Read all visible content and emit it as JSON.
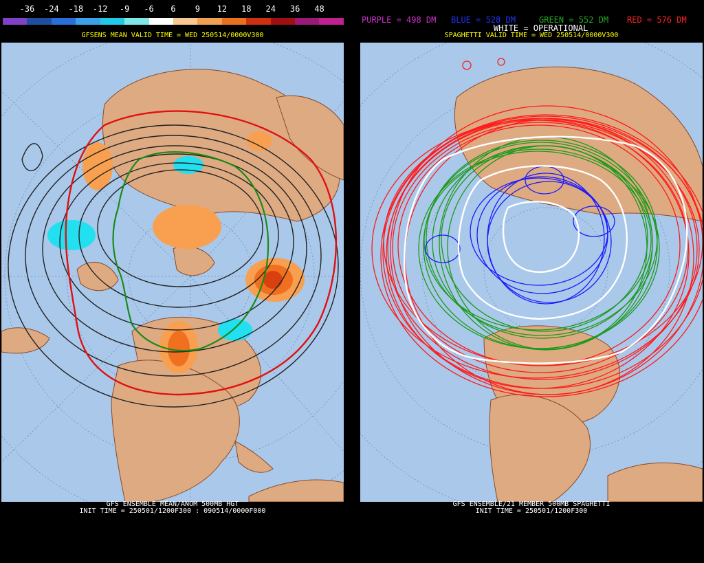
{
  "left_panel": {
    "scale": {
      "labels": [
        "-36",
        "-24",
        "-18",
        "-12",
        "-9",
        "-6",
        "6",
        "9",
        "12",
        "18",
        "24",
        "36",
        "48"
      ],
      "colors": [
        "#8040c8",
        "#1e4ea0",
        "#2a6fd8",
        "#3aa0e8",
        "#22c8e8",
        "#7ee8e8",
        "#ffffff",
        "#f8c890",
        "#f0a050",
        "#e87020",
        "#d03010",
        "#a01010",
        "#9a1a78",
        "#c02090"
      ]
    },
    "valid_title": "GFSENS MEAN VALID TIME = WED 250514/0000V300",
    "bottom_line1": "GFS ENSEMBLE MEAN/ANOM 500MB HGT",
    "bottom_line2": "INIT TIME = 250501/1200F300 : 090514/0000F000"
  },
  "right_panel": {
    "legend": {
      "purple": "PURPLE = 498 DM",
      "blue": "BLUE = 528 DM",
      "green": "GREEN = 552 DM",
      "red": "RED = 576 DM",
      "white": "WHITE = OPERATIONAL"
    },
    "legend_colors": {
      "purple": "#cc33cc",
      "blue": "#2233ff",
      "green": "#22aa22",
      "red": "#ff2222",
      "white": "#ffffff"
    },
    "valid_title": "SPAGHETTI VALID TIME = WED 250514/0000V300",
    "bottom_line1": "GFS ENSEMBLE/21 MEMBER 500MB SPAGHETTI",
    "bottom_line2": "INIT TIME = 250501/1200F300"
  },
  "colors": {
    "ocean": "#a9c8ea",
    "land": "#deaa82",
    "border": "#8a4a2a"
  }
}
